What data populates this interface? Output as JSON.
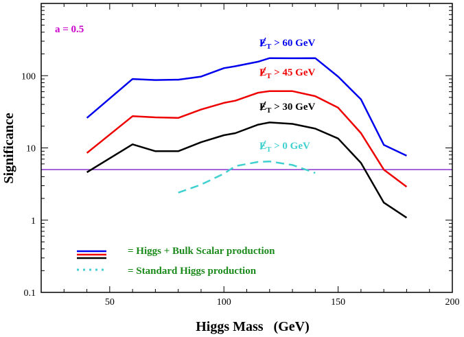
{
  "chart_data": {
    "type": "line",
    "xlabel": "Higgs Mass   (GeV)",
    "ylabel": "Significance",
    "xlim": [
      20,
      200
    ],
    "ylim": [
      0.1,
      1000
    ],
    "yscale": "log",
    "xticks": [
      50,
      100,
      150,
      200
    ],
    "xtick_labels": [
      "50",
      "100",
      "150",
      "200"
    ],
    "yticks": [
      0.1,
      1,
      10,
      100
    ],
    "ytick_labels": [
      "0.1",
      "1",
      "10",
      "100"
    ],
    "parameter_label": "a = 0.5",
    "colors": {
      "blue": "#0000ee",
      "red": "#ee0000",
      "black": "#000000",
      "cyan": "#40d0d0",
      "threshold": "#8833cc",
      "legend_text": "#1a8a1a",
      "parameter": "#cc00cc"
    },
    "series": [
      {
        "name": "ET > 60 GeV",
        "label_base": "E",
        "label_sub": "T",
        "label_rest": " >  60 GeV",
        "color": "#0000ee",
        "style": "solid",
        "x": [
          40,
          60,
          70,
          80,
          90,
          100,
          105,
          115,
          120,
          130,
          140,
          150,
          160,
          170,
          180
        ],
        "y": [
          26,
          90,
          87,
          88,
          97,
          127,
          135,
          156,
          175,
          174,
          175,
          97,
          47,
          11,
          7.8
        ]
      },
      {
        "name": "ET > 45 GeV",
        "label_base": "E",
        "label_sub": "T",
        "label_rest": " >  45 GeV",
        "color": "#ee0000",
        "style": "solid",
        "x": [
          40,
          60,
          70,
          80,
          90,
          100,
          105,
          115,
          120,
          130,
          140,
          150,
          160,
          170,
          180
        ],
        "y": [
          8.5,
          27.5,
          26.5,
          26,
          34,
          42,
          45,
          58,
          61,
          61,
          52,
          36,
          16,
          5,
          2.9
        ]
      },
      {
        "name": "ET > 30 GeV",
        "label_base": "E",
        "label_sub": "T",
        "label_rest": " >  30 GeV",
        "color": "#000000",
        "style": "solid",
        "x": [
          40,
          60,
          70,
          80,
          90,
          100,
          105,
          115,
          120,
          130,
          140,
          150,
          160,
          170,
          180
        ],
        "y": [
          4.6,
          11.2,
          9,
          9,
          12,
          15,
          16,
          21,
          22.5,
          21.5,
          18.5,
          13.5,
          6.2,
          1.75,
          1.08
        ]
      },
      {
        "name": "ET > 0 GeV",
        "label_base": "E",
        "label_sub": "T",
        "label_rest": " >  0 GeV",
        "color": "#40d0d0",
        "style": "dashed",
        "x": [
          80,
          90,
          100,
          105,
          115,
          120,
          130,
          140
        ],
        "y": [
          2.4,
          3.1,
          4.4,
          5.6,
          6.4,
          6.5,
          5.8,
          4.5
        ]
      }
    ],
    "threshold": {
      "y": 5,
      "color": "#8833cc"
    },
    "legend": [
      {
        "swatch": "triple-solid",
        "text": "=   Higgs + Bulk Scalar production"
      },
      {
        "swatch": "dotted",
        "text": "=   Standard Higgs production"
      }
    ]
  }
}
